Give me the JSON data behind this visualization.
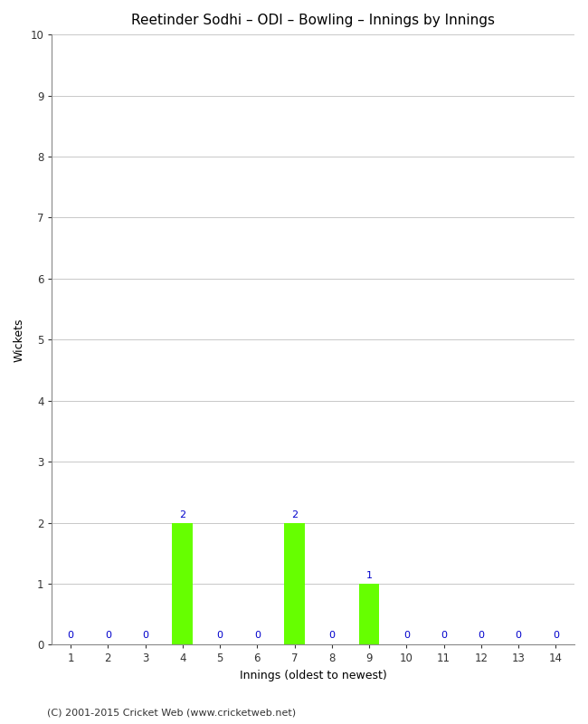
{
  "title": "Reetinder Sodhi – ODI – Bowling – Innings by Innings",
  "xlabel": "Innings (oldest to newest)",
  "ylabel": "Wickets",
  "categories": [
    1,
    2,
    3,
    4,
    5,
    6,
    7,
    8,
    9,
    10,
    11,
    12,
    13,
    14
  ],
  "values": [
    0,
    0,
    0,
    2,
    0,
    0,
    2,
    0,
    1,
    0,
    0,
    0,
    0,
    0
  ],
  "bar_color": "#66ff00",
  "label_color": "#0000cc",
  "ylim": [
    0,
    10
  ],
  "yticks": [
    0,
    1,
    2,
    3,
    4,
    5,
    6,
    7,
    8,
    9,
    10
  ],
  "background_color": "#ffffff",
  "grid_color": "#c8c8c8",
  "title_fontsize": 11,
  "axis_label_fontsize": 9,
  "tick_label_fontsize": 8.5,
  "bar_label_fontsize": 8,
  "footer": "(C) 2001-2015 Cricket Web (www.cricketweb.net)",
  "footer_fontsize": 8
}
